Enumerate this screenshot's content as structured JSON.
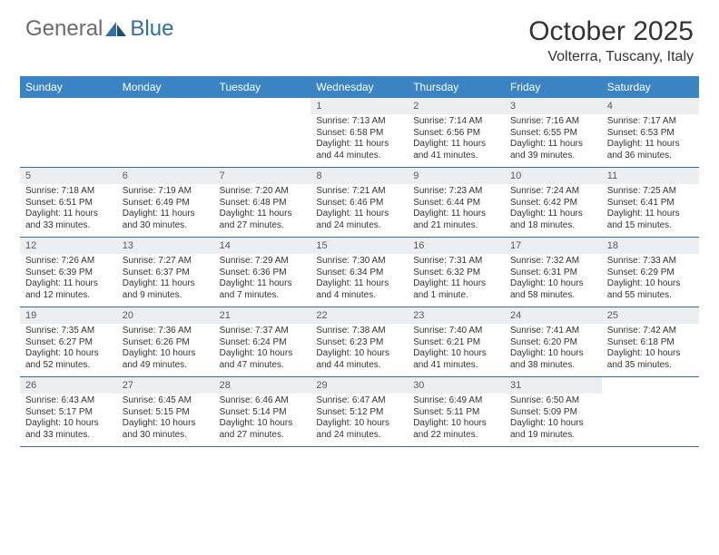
{
  "logo": {
    "general": "General",
    "blue": "Blue"
  },
  "header": {
    "title": "October 2025",
    "location": "Volterra, Tuscany, Italy"
  },
  "colors": {
    "header_bar": "#3a84c4",
    "header_text": "#ffffff",
    "cell_header_bg": "#eceff2",
    "cell_header_text": "#5a5a5a",
    "body_text": "#333333",
    "row_border": "#3a6a9a",
    "logo_gray": "#6b6b6b",
    "logo_blue": "#2f6fa8",
    "background": "#ffffff"
  },
  "weekdays": [
    "Sunday",
    "Monday",
    "Tuesday",
    "Wednesday",
    "Thursday",
    "Friday",
    "Saturday"
  ],
  "weeks": [
    [
      null,
      null,
      null,
      {
        "n": "1",
        "sr": "Sunrise: 7:13 AM",
        "ss": "Sunset: 6:58 PM",
        "d1": "Daylight: 11 hours",
        "d2": "and 44 minutes."
      },
      {
        "n": "2",
        "sr": "Sunrise: 7:14 AM",
        "ss": "Sunset: 6:56 PM",
        "d1": "Daylight: 11 hours",
        "d2": "and 41 minutes."
      },
      {
        "n": "3",
        "sr": "Sunrise: 7:16 AM",
        "ss": "Sunset: 6:55 PM",
        "d1": "Daylight: 11 hours",
        "d2": "and 39 minutes."
      },
      {
        "n": "4",
        "sr": "Sunrise: 7:17 AM",
        "ss": "Sunset: 6:53 PM",
        "d1": "Daylight: 11 hours",
        "d2": "and 36 minutes."
      }
    ],
    [
      {
        "n": "5",
        "sr": "Sunrise: 7:18 AM",
        "ss": "Sunset: 6:51 PM",
        "d1": "Daylight: 11 hours",
        "d2": "and 33 minutes."
      },
      {
        "n": "6",
        "sr": "Sunrise: 7:19 AM",
        "ss": "Sunset: 6:49 PM",
        "d1": "Daylight: 11 hours",
        "d2": "and 30 minutes."
      },
      {
        "n": "7",
        "sr": "Sunrise: 7:20 AM",
        "ss": "Sunset: 6:48 PM",
        "d1": "Daylight: 11 hours",
        "d2": "and 27 minutes."
      },
      {
        "n": "8",
        "sr": "Sunrise: 7:21 AM",
        "ss": "Sunset: 6:46 PM",
        "d1": "Daylight: 11 hours",
        "d2": "and 24 minutes."
      },
      {
        "n": "9",
        "sr": "Sunrise: 7:23 AM",
        "ss": "Sunset: 6:44 PM",
        "d1": "Daylight: 11 hours",
        "d2": "and 21 minutes."
      },
      {
        "n": "10",
        "sr": "Sunrise: 7:24 AM",
        "ss": "Sunset: 6:42 PM",
        "d1": "Daylight: 11 hours",
        "d2": "and 18 minutes."
      },
      {
        "n": "11",
        "sr": "Sunrise: 7:25 AM",
        "ss": "Sunset: 6:41 PM",
        "d1": "Daylight: 11 hours",
        "d2": "and 15 minutes."
      }
    ],
    [
      {
        "n": "12",
        "sr": "Sunrise: 7:26 AM",
        "ss": "Sunset: 6:39 PM",
        "d1": "Daylight: 11 hours",
        "d2": "and 12 minutes."
      },
      {
        "n": "13",
        "sr": "Sunrise: 7:27 AM",
        "ss": "Sunset: 6:37 PM",
        "d1": "Daylight: 11 hours",
        "d2": "and 9 minutes."
      },
      {
        "n": "14",
        "sr": "Sunrise: 7:29 AM",
        "ss": "Sunset: 6:36 PM",
        "d1": "Daylight: 11 hours",
        "d2": "and 7 minutes."
      },
      {
        "n": "15",
        "sr": "Sunrise: 7:30 AM",
        "ss": "Sunset: 6:34 PM",
        "d1": "Daylight: 11 hours",
        "d2": "and 4 minutes."
      },
      {
        "n": "16",
        "sr": "Sunrise: 7:31 AM",
        "ss": "Sunset: 6:32 PM",
        "d1": "Daylight: 11 hours",
        "d2": "and 1 minute."
      },
      {
        "n": "17",
        "sr": "Sunrise: 7:32 AM",
        "ss": "Sunset: 6:31 PM",
        "d1": "Daylight: 10 hours",
        "d2": "and 58 minutes."
      },
      {
        "n": "18",
        "sr": "Sunrise: 7:33 AM",
        "ss": "Sunset: 6:29 PM",
        "d1": "Daylight: 10 hours",
        "d2": "and 55 minutes."
      }
    ],
    [
      {
        "n": "19",
        "sr": "Sunrise: 7:35 AM",
        "ss": "Sunset: 6:27 PM",
        "d1": "Daylight: 10 hours",
        "d2": "and 52 minutes."
      },
      {
        "n": "20",
        "sr": "Sunrise: 7:36 AM",
        "ss": "Sunset: 6:26 PM",
        "d1": "Daylight: 10 hours",
        "d2": "and 49 minutes."
      },
      {
        "n": "21",
        "sr": "Sunrise: 7:37 AM",
        "ss": "Sunset: 6:24 PM",
        "d1": "Daylight: 10 hours",
        "d2": "and 47 minutes."
      },
      {
        "n": "22",
        "sr": "Sunrise: 7:38 AM",
        "ss": "Sunset: 6:23 PM",
        "d1": "Daylight: 10 hours",
        "d2": "and 44 minutes."
      },
      {
        "n": "23",
        "sr": "Sunrise: 7:40 AM",
        "ss": "Sunset: 6:21 PM",
        "d1": "Daylight: 10 hours",
        "d2": "and 41 minutes."
      },
      {
        "n": "24",
        "sr": "Sunrise: 7:41 AM",
        "ss": "Sunset: 6:20 PM",
        "d1": "Daylight: 10 hours",
        "d2": "and 38 minutes."
      },
      {
        "n": "25",
        "sr": "Sunrise: 7:42 AM",
        "ss": "Sunset: 6:18 PM",
        "d1": "Daylight: 10 hours",
        "d2": "and 35 minutes."
      }
    ],
    [
      {
        "n": "26",
        "sr": "Sunrise: 6:43 AM",
        "ss": "Sunset: 5:17 PM",
        "d1": "Daylight: 10 hours",
        "d2": "and 33 minutes."
      },
      {
        "n": "27",
        "sr": "Sunrise: 6:45 AM",
        "ss": "Sunset: 5:15 PM",
        "d1": "Daylight: 10 hours",
        "d2": "and 30 minutes."
      },
      {
        "n": "28",
        "sr": "Sunrise: 6:46 AM",
        "ss": "Sunset: 5:14 PM",
        "d1": "Daylight: 10 hours",
        "d2": "and 27 minutes."
      },
      {
        "n": "29",
        "sr": "Sunrise: 6:47 AM",
        "ss": "Sunset: 5:12 PM",
        "d1": "Daylight: 10 hours",
        "d2": "and 24 minutes."
      },
      {
        "n": "30",
        "sr": "Sunrise: 6:49 AM",
        "ss": "Sunset: 5:11 PM",
        "d1": "Daylight: 10 hours",
        "d2": "and 22 minutes."
      },
      {
        "n": "31",
        "sr": "Sunrise: 6:50 AM",
        "ss": "Sunset: 5:09 PM",
        "d1": "Daylight: 10 hours",
        "d2": "and 19 minutes."
      },
      null
    ]
  ]
}
